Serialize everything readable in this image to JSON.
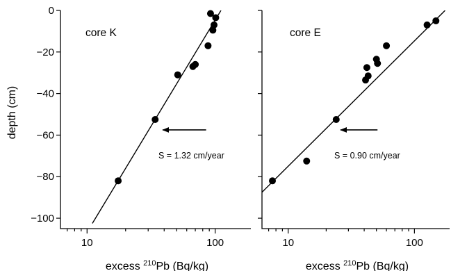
{
  "chart_data": [
    {
      "type": "scatter",
      "panel_label": "core K",
      "xlabel_prefix": "excess ",
      "xlabel_sup": "210",
      "xlabel_suffix": "Pb (Bq/kg)",
      "ylabel": "depth (cm)",
      "x_scale": "log",
      "xlim": [
        6.2,
        190
      ],
      "ylim": [
        -105,
        0
      ],
      "x_ticks": [
        10,
        100
      ],
      "x_tick_labels": [
        "10",
        "100"
      ],
      "y_ticks": [
        0,
        -20,
        -40,
        -60,
        -80,
        -100
      ],
      "y_tick_labels": [
        "0",
        "−20",
        "−40",
        "−60",
        "−80",
        "−100"
      ],
      "points": [
        {
          "x": 92,
          "y": -1.5
        },
        {
          "x": 101,
          "y": -3.5
        },
        {
          "x": 98,
          "y": -7
        },
        {
          "x": 96,
          "y": -9.5
        },
        {
          "x": 88,
          "y": -17
        },
        {
          "x": 70,
          "y": -26
        },
        {
          "x": 67,
          "y": -27
        },
        {
          "x": 51,
          "y": -31
        },
        {
          "x": 34,
          "y": -52.5
        },
        {
          "x": 17.5,
          "y": -82
        }
      ],
      "fit_line": {
        "x": [
          11,
          111
        ],
        "y": [
          -102.5,
          0
        ]
      },
      "annotation": "S = 1.32 cm/year",
      "arrow": {
        "from": [
          85,
          -57.5
        ],
        "to": [
          39,
          -57.5
        ]
      }
    },
    {
      "type": "scatter",
      "panel_label": "core E",
      "xlabel_prefix": "excess ",
      "xlabel_sup": "210",
      "xlabel_suffix": "Pb (Bq/kg)",
      "ylabel": "",
      "x_scale": "log",
      "xlim": [
        6.2,
        190
      ],
      "ylim": [
        -105,
        0
      ],
      "x_ticks": [
        10,
        100
      ],
      "x_tick_labels": [
        "10",
        "100"
      ],
      "y_ticks": [
        0,
        -20,
        -40,
        -60,
        -80,
        -100
      ],
      "y_tick_labels": [],
      "points": [
        {
          "x": 148,
          "y": -5
        },
        {
          "x": 126,
          "y": -7
        },
        {
          "x": 60,
          "y": -17
        },
        {
          "x": 50,
          "y": -23.5
        },
        {
          "x": 51,
          "y": -25.5
        },
        {
          "x": 42,
          "y": -27.5
        },
        {
          "x": 43,
          "y": -31.5
        },
        {
          "x": 41,
          "y": -33.5
        },
        {
          "x": 24,
          "y": -52.5
        },
        {
          "x": 14,
          "y": -72.5
        },
        {
          "x": 7.5,
          "y": -82
        }
      ],
      "fit_line": {
        "x": [
          6.2,
          175
        ],
        "y": [
          -87.5,
          0
        ]
      },
      "annotation": "S = 0.90 cm/year",
      "arrow": {
        "from": [
          51,
          -57.5
        ],
        "to": [
          26,
          -57.5
        ]
      }
    }
  ]
}
